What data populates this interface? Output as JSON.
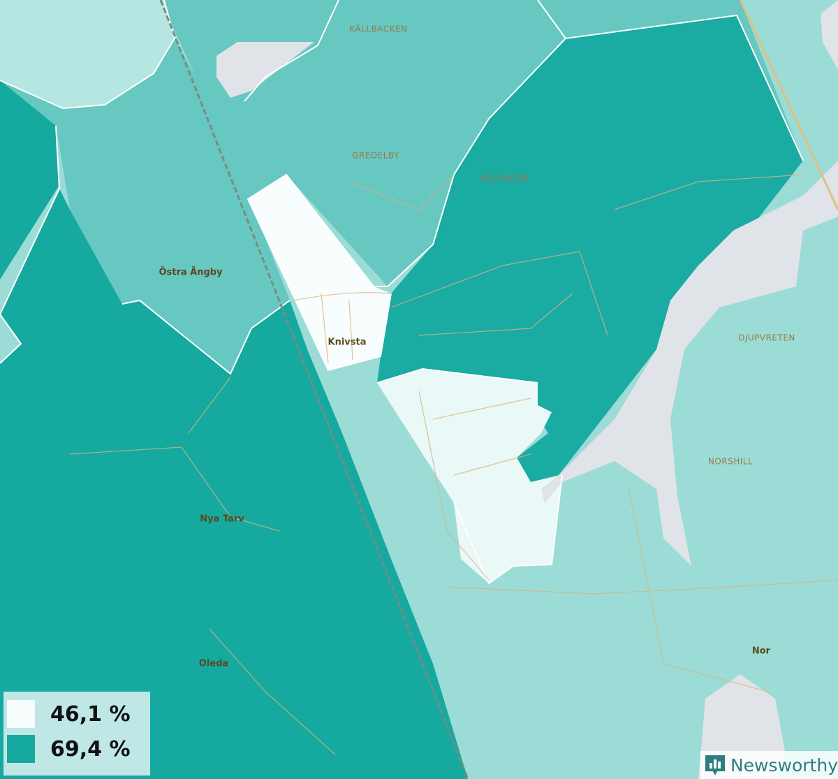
{
  "places": [
    {
      "label": "KÄLLBACKEN"
    },
    {
      "label": "GREDELBY"
    },
    {
      "label": "KÖLÄNGEN"
    },
    {
      "label": "Östra Ängby"
    },
    {
      "label": "Knivsta"
    },
    {
      "label": "DJUPVRETEN"
    },
    {
      "label": "NORSHILL"
    },
    {
      "label": "Nya Tarv"
    },
    {
      "label": "Oleda"
    },
    {
      "label": "Nor"
    }
  ],
  "legend": [
    {
      "label": "46,1 %",
      "color": "#f7fcfc"
    },
    {
      "label": "69,4 %",
      "color": "#16a9a0"
    }
  ],
  "brand": "Newsworthy"
}
